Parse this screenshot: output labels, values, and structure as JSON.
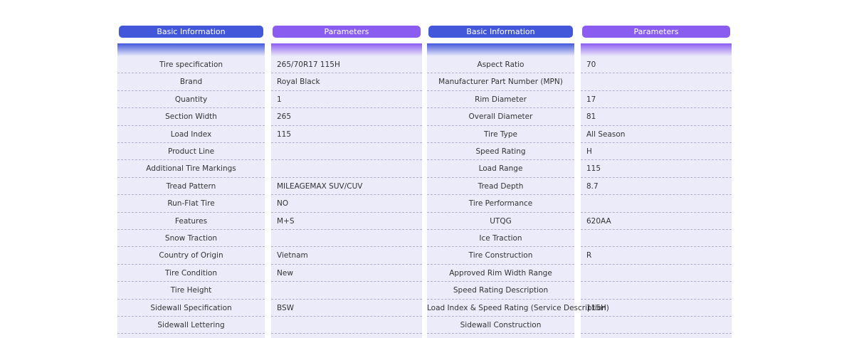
{
  "tables": [
    {
      "headers": [
        "Basic Information",
        "Parameters"
      ],
      "rows": [
        {
          "label": "Tire specification",
          "value": "265/70R17 115H"
        },
        {
          "label": "Brand",
          "value": "Royal Black"
        },
        {
          "label": "Quantity",
          "value": "1"
        },
        {
          "label": "Section Width",
          "value": "265"
        },
        {
          "label": "Load Index",
          "value": "115"
        },
        {
          "label": "Product Line"
        },
        {
          "label": "Additional Tire Markings"
        },
        {
          "label": "Tread Pattern",
          "value": "MILEAGEMAX SUV/CUV"
        },
        {
          "label": "Run-Flat Tire",
          "value": "NO"
        },
        {
          "label": "Features",
          "value": "M+S"
        },
        {
          "label": "Snow Traction"
        },
        {
          "label": "Country of Origin",
          "value": "Vietnam"
        },
        {
          "label": "Tire Condition",
          "value": "New"
        },
        {
          "label": "Tire Height"
        },
        {
          "label": "Sidewall Specification",
          "value": "BSW"
        },
        {
          "label": "Sidewall Lettering"
        }
      ]
    },
    {
      "headers": [
        "Basic Information",
        "Parameters"
      ],
      "rows": [
        {
          "label": "Aspect Ratio",
          "value": "70"
        },
        {
          "label": "Manufacturer Part Number (MPN)"
        },
        {
          "label": "Rim Diameter",
          "value": "17"
        },
        {
          "label": "Overall Diameter",
          "value": "81"
        },
        {
          "label": "Tire Type",
          "value": "All Season"
        },
        {
          "label": "Speed Rating",
          "value": "H"
        },
        {
          "label": "Load Range",
          "value": "115"
        },
        {
          "label": "Tread Depth",
          "value": "8.7"
        },
        {
          "label": "Tire Performance"
        },
        {
          "label": "UTQG",
          "value": "620AA"
        },
        {
          "label": "Ice Traction"
        },
        {
          "label": "Tire Construction",
          "value": "R"
        },
        {
          "label": "Approved Rim Width Range"
        },
        {
          "label": "Speed Rating Description"
        },
        {
          "label": "Load Index & Speed Rating (Service Description)",
          "value": "115H"
        },
        {
          "label": "Sidewall Construction"
        }
      ]
    }
  ]
}
